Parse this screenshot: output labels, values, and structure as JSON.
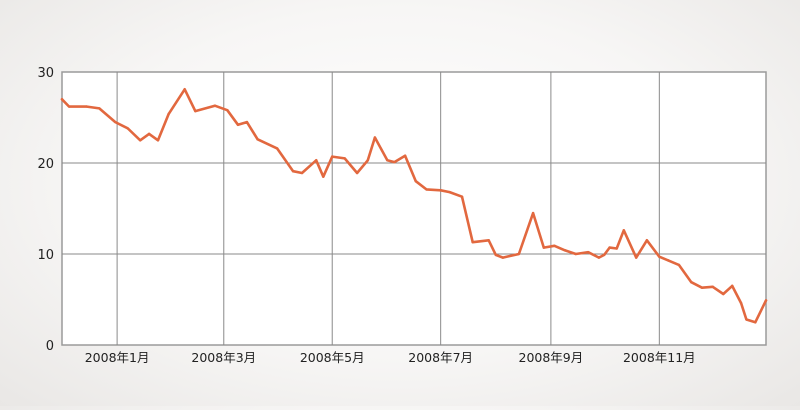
{
  "chart_data": {
    "type": "line",
    "title": "",
    "xlabel": "",
    "ylabel": "",
    "ylim": [
      0,
      30
    ],
    "xlim": [
      "2007-12-01",
      "2008-12-31"
    ],
    "y_ticks": [
      0,
      10,
      20,
      30
    ],
    "x_tick_dates": [
      "2008-01-01",
      "2008-03-01",
      "2008-05-01",
      "2008-07-01",
      "2008-09-01",
      "2008-11-01"
    ],
    "x_tick_labels": [
      "2008年1月",
      "2008年3月",
      "2008年5月",
      "2008年7月",
      "2008年9月",
      "2008年11月"
    ],
    "grid": true,
    "line_color": "#e2683f",
    "grid_color": "#8a8a8a",
    "series": [
      {
        "name": "",
        "x": [
          "2007-12-01",
          "2007-12-05",
          "2007-12-15",
          "2007-12-22",
          "2007-12-31",
          "2008-01-07",
          "2008-01-14",
          "2008-01-19",
          "2008-01-24",
          "2008-01-30",
          "2008-02-08",
          "2008-02-14",
          "2008-02-25",
          "2008-03-03",
          "2008-03-09",
          "2008-03-14",
          "2008-03-20",
          "2008-03-31",
          "2008-04-09",
          "2008-04-14",
          "2008-04-22",
          "2008-04-26",
          "2008-05-01",
          "2008-05-08",
          "2008-05-15",
          "2008-05-21",
          "2008-05-25",
          "2008-06-01",
          "2008-06-05",
          "2008-06-11",
          "2008-06-17",
          "2008-06-23",
          "2008-07-01",
          "2008-07-06",
          "2008-07-13",
          "2008-07-19",
          "2008-07-28",
          "2008-08-01",
          "2008-08-05",
          "2008-08-14",
          "2008-08-22",
          "2008-08-28",
          "2008-09-03",
          "2008-09-09",
          "2008-09-15",
          "2008-09-22",
          "2008-09-28",
          "2008-10-01",
          "2008-10-04",
          "2008-10-08",
          "2008-10-12",
          "2008-10-19",
          "2008-10-25",
          "2008-11-01",
          "2008-11-06",
          "2008-11-12",
          "2008-11-19",
          "2008-11-25",
          "2008-12-01",
          "2008-12-07",
          "2008-12-12",
          "2008-12-17",
          "2008-12-20",
          "2008-12-25",
          "2008-12-31"
        ],
        "values": [
          27.0,
          26.2,
          26.2,
          26.0,
          24.5,
          23.8,
          22.5,
          23.2,
          22.5,
          25.4,
          28.1,
          25.7,
          26.3,
          25.8,
          24.2,
          24.5,
          22.6,
          21.6,
          19.1,
          18.9,
          20.3,
          18.5,
          20.7,
          20.5,
          18.9,
          20.3,
          22.8,
          20.3,
          20.1,
          20.8,
          18.0,
          17.1,
          17.0,
          16.8,
          16.3,
          11.3,
          11.5,
          9.9,
          9.6,
          10.0,
          14.5,
          10.7,
          10.9,
          10.4,
          10.0,
          10.2,
          9.6,
          9.9,
          10.7,
          10.6,
          12.6,
          9.6,
          11.5,
          9.7,
          9.3,
          8.8,
          6.9,
          6.3,
          6.4,
          5.6,
          6.5,
          4.6,
          2.8,
          2.5,
          4.9
        ]
      }
    ]
  }
}
